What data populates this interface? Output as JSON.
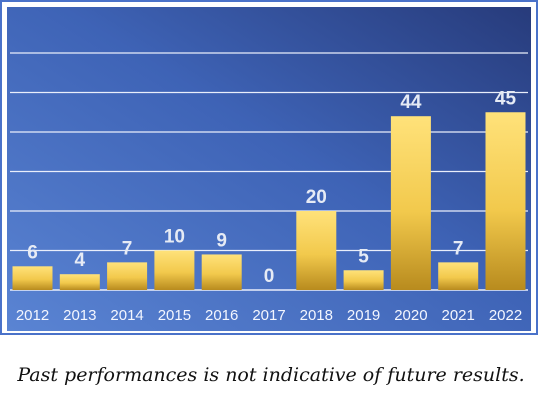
{
  "colors": {
    "frame": "#4a72c9",
    "plot_bg_light": "#4a74c4",
    "plot_bg_dark": "#263a7a",
    "grid": "#e9eefb",
    "bar_top": "#ffe27a",
    "bar_bottom": "#b88b1e",
    "label": "#e6ebf5",
    "tick": "#f3f6ff"
  },
  "chart_data": {
    "type": "bar",
    "categories": [
      "2012",
      "2013",
      "2014",
      "2015",
      "2016",
      "2017",
      "2018",
      "2019",
      "2020",
      "2021",
      "2022"
    ],
    "values": [
      6,
      4,
      7,
      10,
      9,
      0,
      20,
      5,
      44,
      7,
      45
    ],
    "data_labels": [
      "6",
      "4",
      "7",
      "10",
      "9",
      "0",
      "20",
      "5",
      "44",
      "7",
      "45"
    ],
    "title": "",
    "xlabel": "",
    "ylabel": "",
    "ylim": [
      0,
      60
    ],
    "grid": true
  },
  "caption": "Past performances is not indicative of future results."
}
